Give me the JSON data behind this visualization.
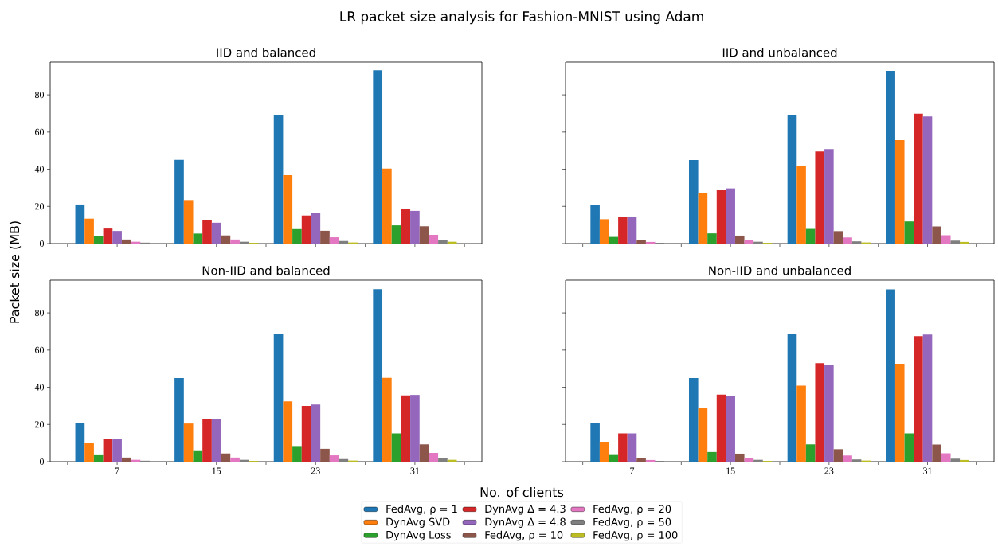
{
  "chart_data": [
    {
      "type": "bar",
      "title": "IID and balanced",
      "ylabel": "Packet size (MB)",
      "annotations": [
        "LR packet size analysis for Fashion-MNIST using Adam"
      ],
      "legend": "bottom",
      "tick_labels": "y",
      "x": [
        7,
        15,
        23,
        31
      ],
      "xlim": [
        1.6,
        36.4
      ],
      "xticks": [
        {
          "value": 3,
          "label": null
        },
        7,
        {
          "value": 11,
          "label": null
        },
        15,
        {
          "value": 19,
          "label": null
        },
        23,
        {
          "value": 27,
          "label": null
        },
        31,
        {
          "value": 35,
          "label": null
        }
      ],
      "ylim": [
        0,
        97.6
      ],
      "yticks": [
        0,
        20,
        40,
        60,
        80
      ],
      "series": [
        {
          "name": "FedAvg, ρ = 1",
          "color": "#1f77b4",
          "values": [
            21.0,
            45.1,
            69.2,
            93.2
          ]
        },
        {
          "name": "DynAvg SVD",
          "color": "#ff7f0e",
          "values": [
            13.4,
            23.4,
            36.8,
            40.3
          ]
        },
        {
          "name": "DynAvg Loss",
          "color": "#2ca02c",
          "values": [
            3.9,
            5.4,
            7.8,
            9.8
          ]
        },
        {
          "name": "DynAvg Δ = 4.3",
          "color": "#d62728",
          "values": [
            8.1,
            12.7,
            15.1,
            18.8
          ]
        },
        {
          "name": "DynAvg Δ = 4.8",
          "color": "#9467bd",
          "values": [
            6.8,
            11.2,
            16.4,
            17.6
          ]
        },
        {
          "name": "FedAvg, ρ = 10",
          "color": "#8c564b",
          "values": [
            2.2,
            4.4,
            6.9,
            9.3
          ]
        },
        {
          "name": "FedAvg, ρ = 20",
          "color": "#e377c2",
          "values": [
            1.0,
            2.2,
            3.4,
            4.7
          ]
        },
        {
          "name": "FedAvg, ρ = 50",
          "color": "#7f7f7f",
          "values": [
            0.5,
            1.0,
            1.4,
            1.9
          ]
        },
        {
          "name": "FedAvg, ρ = 100",
          "color": "#bcbd22",
          "values": [
            null,
            0.4,
            0.6,
            1.0
          ]
        }
      ]
    },
    {
      "type": "bar",
      "title": "IID and unbalanced",
      "tick_labels": false,
      "x": [
        7,
        15,
        23,
        31
      ],
      "xlim": [
        1.6,
        36.4
      ],
      "xticks": [
        {
          "value": 3,
          "label": null
        },
        7,
        {
          "value": 11,
          "label": null
        },
        15,
        {
          "value": 19,
          "label": null
        },
        23,
        {
          "value": 27,
          "label": null
        },
        31,
        {
          "value": 35,
          "label": null
        }
      ],
      "ylim": [
        0,
        97.6
      ],
      "yticks": [
        0,
        20,
        40,
        60,
        80
      ],
      "series": [
        {
          "color": "#1f77b4",
          "values": [
            20.9,
            44.9,
            68.9,
            92.9
          ]
        },
        {
          "color": "#ff7f0e",
          "values": [
            13.1,
            27.1,
            41.8,
            55.6
          ]
        },
        {
          "color": "#2ca02c",
          "values": [
            3.6,
            5.5,
            7.9,
            11.9
          ]
        },
        {
          "color": "#d62728",
          "values": [
            14.5,
            28.7,
            49.6,
            69.9
          ]
        },
        {
          "color": "#9467bd",
          "values": [
            14.3,
            29.7,
            50.8,
            68.4
          ]
        },
        {
          "color": "#8c564b",
          "values": [
            1.9,
            4.3,
            6.7,
            9.2
          ]
        },
        {
          "color": "#e377c2",
          "values": [
            0.9,
            2.1,
            3.3,
            4.5
          ]
        },
        {
          "color": "#7f7f7f",
          "values": [
            0.4,
            1.0,
            1.2,
            1.6
          ]
        },
        {
          "color": "#bcbd22",
          "values": [
            null,
            0.4,
            0.6,
            0.9
          ]
        }
      ]
    },
    {
      "type": "bar",
      "title": "Non-IID and balanced",
      "xlabel": "No. of clients",
      "x": [
        7,
        15,
        23,
        31
      ],
      "xlim": [
        1.6,
        36.4
      ],
      "xticks": [
        {
          "value": 3,
          "label": null
        },
        7,
        {
          "value": 11,
          "label": null
        },
        15,
        {
          "value": 19,
          "label": null
        },
        23,
        {
          "value": 27,
          "label": null
        },
        31,
        {
          "value": 35,
          "label": null
        }
      ],
      "ylim": [
        0,
        97.6
      ],
      "yticks": [
        0,
        20,
        40,
        60,
        80
      ],
      "series": [
        {
          "color": "#1f77b4",
          "values": [
            20.9,
            44.9,
            68.9,
            92.8
          ]
        },
        {
          "color": "#ff7f0e",
          "values": [
            10.2,
            20.5,
            32.4,
            45.1
          ]
        },
        {
          "color": "#2ca02c",
          "values": [
            3.9,
            6.1,
            8.4,
            15.2
          ]
        },
        {
          "color": "#d62728",
          "values": [
            12.3,
            23.1,
            30.0,
            35.6
          ]
        },
        {
          "color": "#9467bd",
          "values": [
            12.1,
            22.8,
            30.7,
            35.9
          ]
        },
        {
          "color": "#8c564b",
          "values": [
            2.2,
            4.4,
            6.9,
            9.3
          ]
        },
        {
          "color": "#e377c2",
          "values": [
            1.0,
            2.2,
            3.4,
            4.7
          ]
        },
        {
          "color": "#7f7f7f",
          "values": [
            0.5,
            1.0,
            1.4,
            1.9
          ]
        },
        {
          "color": "#bcbd22",
          "values": [
            null,
            0.4,
            0.6,
            1.0
          ]
        }
      ]
    },
    {
      "type": "bar",
      "title": "Non-IID and unbalanced",
      "tick_labels": "x",
      "x": [
        7,
        15,
        23,
        31
      ],
      "xlim": [
        1.6,
        36.4
      ],
      "xticks": [
        {
          "value": 3,
          "label": null
        },
        7,
        {
          "value": 11,
          "label": null
        },
        15,
        {
          "value": 19,
          "label": null
        },
        23,
        {
          "value": 27,
          "label": null
        },
        31,
        {
          "value": 35,
          "label": null
        }
      ],
      "ylim": [
        0,
        97.6
      ],
      "yticks": [
        0,
        20,
        40,
        60,
        80
      ],
      "series": [
        {
          "color": "#1f77b4",
          "values": [
            20.9,
            44.9,
            68.9,
            92.7
          ]
        },
        {
          "color": "#ff7f0e",
          "values": [
            10.7,
            29.0,
            40.9,
            52.7
          ]
        },
        {
          "color": "#2ca02c",
          "values": [
            4.0,
            5.2,
            9.3,
            15.2
          ]
        },
        {
          "color": "#d62728",
          "values": [
            15.2,
            36.1,
            53.0,
            67.5
          ]
        },
        {
          "color": "#9467bd",
          "values": [
            15.2,
            35.4,
            52.0,
            68.4
          ]
        },
        {
          "color": "#8c564b",
          "values": [
            2.1,
            4.3,
            6.7,
            9.2
          ]
        },
        {
          "color": "#e377c2",
          "values": [
            0.9,
            2.1,
            3.3,
            4.5
          ]
        },
        {
          "color": "#7f7f7f",
          "values": [
            0.4,
            1.0,
            1.2,
            1.6
          ]
        },
        {
          "color": "#bcbd22",
          "values": [
            null,
            0.4,
            0.6,
            0.9
          ]
        }
      ]
    }
  ]
}
